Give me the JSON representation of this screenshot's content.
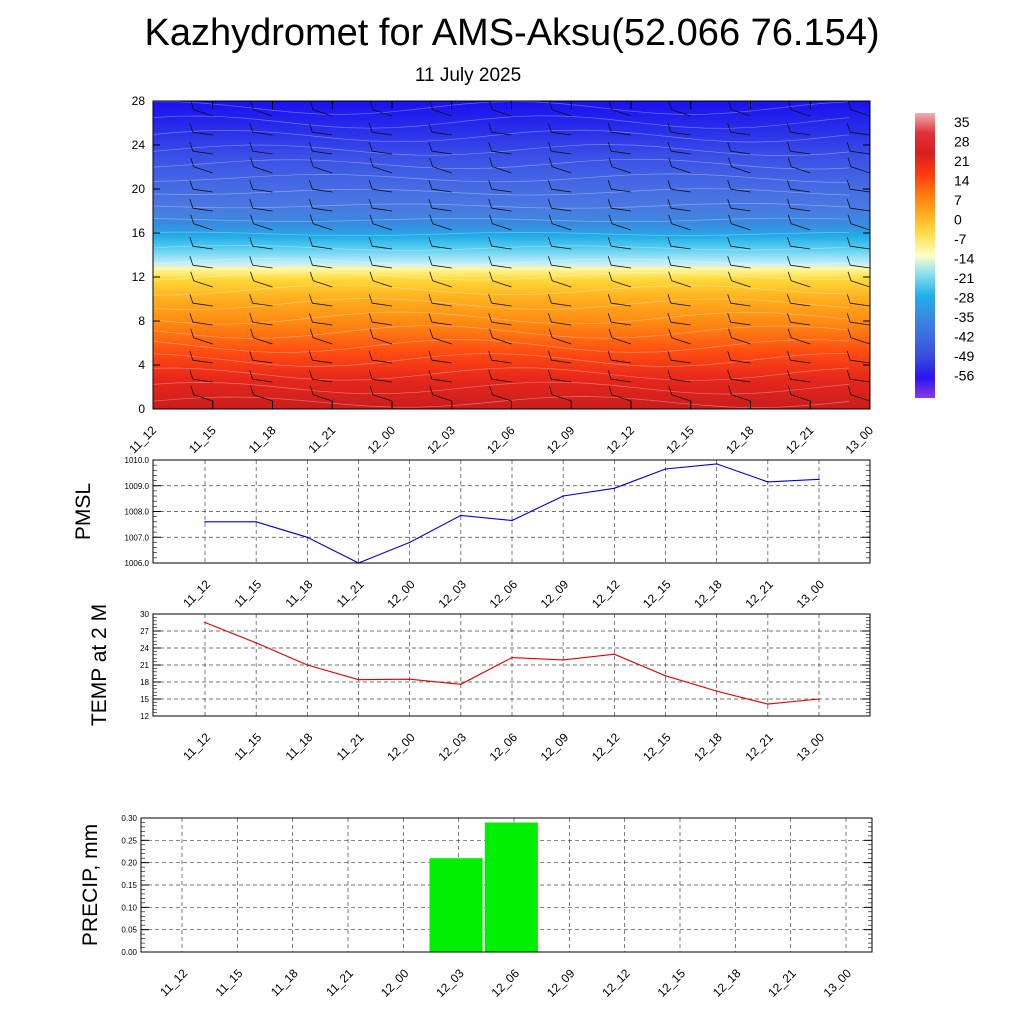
{
  "title": "Kazhydromet for AMS-Aksu(52.066 76.154)",
  "subtitle": "11 July 2025",
  "chart_data": [
    {
      "type": "heatmap",
      "name": "temperature cross-section",
      "x_ticks": [
        "11_12",
        "11_15",
        "11_18",
        "11_21",
        "12_00",
        "12_03",
        "12_06",
        "12_09",
        "12_12",
        "12_15",
        "12_18",
        "12_21",
        "13_00"
      ],
      "y_ticks": [
        0,
        4,
        8,
        12,
        16,
        20,
        24,
        28
      ],
      "ylim": [
        0,
        28
      ],
      "colorbar_labels": [
        "35",
        "28",
        "21",
        "14",
        "7",
        "0",
        "-7",
        "-14",
        "-21",
        "-28",
        "-35",
        "-42",
        "-49",
        "-56"
      ],
      "colorbar_stops": [
        {
          "value": 35,
          "color": "#f0b0b0"
        },
        {
          "value": 28,
          "color": "#e0303a"
        },
        {
          "value": 21,
          "color": "#d81f1f"
        },
        {
          "value": 14,
          "color": "#ff3a10"
        },
        {
          "value": 7,
          "color": "#ff7a10"
        },
        {
          "value": 0,
          "color": "#ffb020"
        },
        {
          "value": -7,
          "color": "#ffe050"
        },
        {
          "value": -14,
          "color": "#ffffc8"
        },
        {
          "value": -21,
          "color": "#7fdcf0"
        },
        {
          "value": -28,
          "color": "#22aee8"
        },
        {
          "value": -35,
          "color": "#3a8ae0"
        },
        {
          "value": -42,
          "color": "#3c6ce0"
        },
        {
          "value": -49,
          "color": "#3a4ae0"
        },
        {
          "value": -56,
          "color": "#2a14f0"
        },
        {
          "value": -63,
          "color": "#8a3ae0"
        }
      ],
      "grid": false
    },
    {
      "type": "line",
      "ylabel": "PMSL",
      "categories": [
        "11_12",
        "11_15",
        "11_18",
        "11_21",
        "12_00",
        "12_03",
        "12_06",
        "12_09",
        "12_12",
        "12_15",
        "12_18",
        "12_21",
        "13_00"
      ],
      "values": [
        1007.6,
        1007.6,
        1007.0,
        1006.0,
        1006.8,
        1007.85,
        1007.65,
        1008.6,
        1008.9,
        1009.65,
        1009.85,
        1009.15,
        1009.25
      ],
      "ylim": [
        1006.0,
        1010.0
      ],
      "y_ticks": [
        "1006.0",
        "1007.0",
        "1008.0",
        "1009.0",
        "1010.0"
      ],
      "color": "#0000cc",
      "grid": true
    },
    {
      "type": "line",
      "ylabel": "TEMP at 2 M",
      "categories": [
        "11_12",
        "11_15",
        "11_18",
        "11_21",
        "12_00",
        "12_03",
        "12_06",
        "12_09",
        "12_12",
        "12_15",
        "12_18",
        "12_21",
        "13_00"
      ],
      "values": [
        28.5,
        24.9,
        21.0,
        18.4,
        18.5,
        17.6,
        22.3,
        21.9,
        22.9,
        19.1,
        16.4,
        14.1,
        15.0
      ],
      "ylim": [
        12,
        30
      ],
      "y_ticks": [
        "12",
        "15",
        "18",
        "21",
        "24",
        "27",
        "30"
      ],
      "color": "#dd0000",
      "grid": true
    },
    {
      "type": "bar",
      "ylabel": "PRECIP, mm",
      "categories": [
        "11_12",
        "11_15",
        "11_18",
        "11_21",
        "12_00",
        "12_03",
        "12_06",
        "12_09",
        "12_12",
        "12_15",
        "12_18",
        "12_21",
        "13_00"
      ],
      "values": [
        0,
        0,
        0,
        0,
        0,
        0.21,
        0.29,
        0,
        0,
        0,
        0,
        0,
        0
      ],
      "ylim": [
        0,
        0.3
      ],
      "y_ticks": [
        "0.00",
        "0.05",
        "0.10",
        "0.15",
        "0.20",
        "0.25",
        "0.30"
      ],
      "color": "#00ee00",
      "grid": true
    }
  ]
}
